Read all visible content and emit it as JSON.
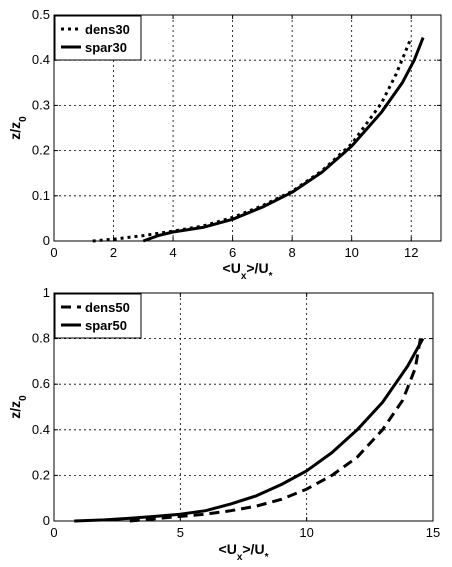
{
  "chart_data": [
    {
      "type": "line",
      "xlabel": "<Ux>/U*",
      "ylabel": "z/z0",
      "xlim": [
        0,
        13
      ],
      "ylim": [
        0,
        0.5
      ],
      "xticks": [
        "0",
        "2",
        "4",
        "6",
        "8",
        "10",
        "12"
      ],
      "yticks": [
        "0",
        "0.1",
        "0.2",
        "0.3",
        "0.4",
        "0.5"
      ],
      "grid": true,
      "legend_position": "top-left",
      "series": [
        {
          "name": "dens30",
          "style": "dotted",
          "color": "#000000",
          "x": [
            1.3,
            2.0,
            3.0,
            4.0,
            5.0,
            6.0,
            7.0,
            8.0,
            9.0,
            10.0,
            11.0,
            11.5,
            12.0
          ],
          "y": [
            0.0,
            0.004,
            0.012,
            0.022,
            0.033,
            0.052,
            0.078,
            0.11,
            0.155,
            0.215,
            0.305,
            0.37,
            0.45
          ]
        },
        {
          "name": "spar30",
          "style": "solid",
          "color": "#000000",
          "x": [
            3.0,
            3.5,
            4.0,
            5.0,
            6.0,
            7.0,
            8.0,
            9.0,
            10.0,
            11.0,
            11.7,
            12.1,
            12.4
          ],
          "y": [
            0.0,
            0.012,
            0.02,
            0.03,
            0.048,
            0.075,
            0.108,
            0.152,
            0.21,
            0.285,
            0.35,
            0.4,
            0.45
          ]
        }
      ]
    },
    {
      "type": "line",
      "xlabel": "<Ux>/U*",
      "ylabel": "z/z0",
      "xlim": [
        0,
        15
      ],
      "ylim": [
        0,
        1
      ],
      "xticks": [
        "0",
        "5",
        "10",
        "15"
      ],
      "yticks": [
        "0",
        "0.2",
        "0.4",
        "0.6",
        "0.8",
        "1"
      ],
      "grid": true,
      "legend_position": "top-left",
      "series": [
        {
          "name": "dens50",
          "style": "dashed",
          "color": "#000000",
          "x": [
            3.0,
            4.0,
            5.0,
            6.0,
            7.0,
            8.0,
            9.0,
            10.0,
            11.0,
            12.0,
            13.0,
            13.8,
            14.3,
            14.5
          ],
          "y": [
            0.0,
            0.01,
            0.02,
            0.03,
            0.045,
            0.065,
            0.095,
            0.14,
            0.2,
            0.28,
            0.4,
            0.53,
            0.67,
            0.8
          ]
        },
        {
          "name": "spar50",
          "style": "solid",
          "color": "#000000",
          "x": [
            0.8,
            2.0,
            3.0,
            4.0,
            5.0,
            6.0,
            7.0,
            8.0,
            9.0,
            10.0,
            11.0,
            12.0,
            13.0,
            14.0,
            14.6
          ],
          "y": [
            0.0,
            0.005,
            0.012,
            0.02,
            0.03,
            0.045,
            0.075,
            0.11,
            0.16,
            0.22,
            0.3,
            0.4,
            0.52,
            0.68,
            0.8
          ]
        }
      ]
    }
  ]
}
